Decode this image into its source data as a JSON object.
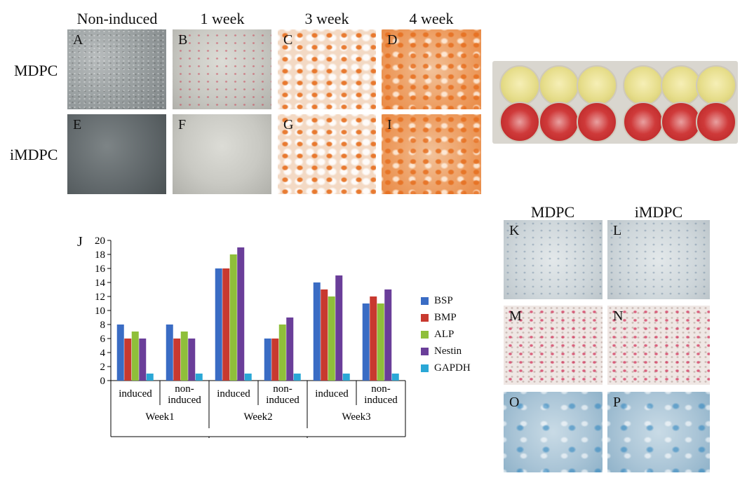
{
  "top_headers": [
    "Non-induced",
    "1 week",
    "3 week",
    "4 week"
  ],
  "row_labels": [
    "MDPC",
    "iMDPC"
  ],
  "panel_labels": [
    "A",
    "B",
    "C",
    "D",
    "E",
    "F",
    "G",
    "I"
  ],
  "stain_headers": [
    "MDPC",
    "iMDPC"
  ],
  "stain_labels": [
    "K",
    "L",
    "M",
    "N",
    "O",
    "P"
  ],
  "chart_panel_label": "J",
  "chart_data": {
    "type": "bar",
    "categories": [
      "induced",
      "non-induced",
      "induced",
      "non-induced",
      "induced",
      "non-induced"
    ],
    "category_lines": [
      [
        "induced"
      ],
      [
        "non-",
        "induced"
      ],
      [
        "induced"
      ],
      [
        "non-",
        "induced"
      ],
      [
        "induced"
      ],
      [
        "non-",
        "induced"
      ]
    ],
    "groups": [
      "Week1",
      "Week2",
      "Week3"
    ],
    "series": [
      {
        "name": "BSP",
        "color": "#3a6cc4",
        "values": [
          8,
          8,
          16,
          6,
          14,
          11
        ]
      },
      {
        "name": "BMP",
        "color": "#c8392f",
        "values": [
          6,
          6,
          16,
          6,
          13,
          12
        ]
      },
      {
        "name": "ALP",
        "color": "#8fbf3a",
        "values": [
          7,
          7,
          18,
          8,
          12,
          11
        ]
      },
      {
        "name": "Nestin",
        "color": "#6a3e99",
        "values": [
          6,
          6,
          19,
          9,
          15,
          13
        ]
      },
      {
        "name": "GAPDH",
        "color": "#2aa7d6",
        "values": [
          1,
          1,
          1,
          1,
          1,
          1
        ]
      }
    ],
    "yticks": [
      0,
      2,
      4,
      6,
      8,
      10,
      12,
      14,
      16,
      18,
      20
    ],
    "ylim": [
      0,
      20
    ],
    "grid": false,
    "legend": "right"
  }
}
